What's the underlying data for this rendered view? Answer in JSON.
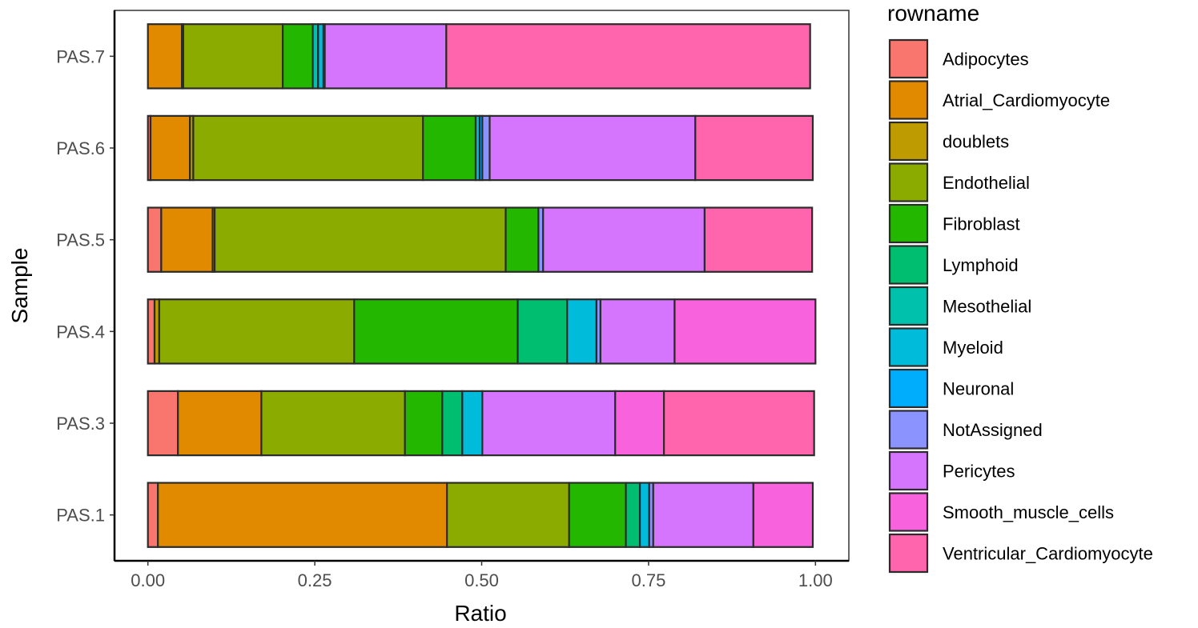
{
  "chart_data": {
    "type": "bar",
    "orientation": "horizontal",
    "stacked": true,
    "xlabel": "Ratio",
    "ylabel": "Sample",
    "xlim": [
      -0.05,
      1.05
    ],
    "xticks": [
      0.0,
      0.25,
      0.5,
      0.75,
      1.0
    ],
    "xtick_labels": [
      "0.00",
      "0.25",
      "0.50",
      "0.75",
      "1.00"
    ],
    "categories": [
      "PAS.1",
      "PAS.3",
      "PAS.4",
      "PAS.5",
      "PAS.6",
      "PAS.7"
    ],
    "legend_title": "rowname",
    "legend_position": "right",
    "series": [
      {
        "name": "Adipocytes",
        "color": "#F8766D",
        "values": [
          0.015,
          0.045,
          0.01,
          0.02,
          0.004,
          0.0
        ]
      },
      {
        "name": "Atrial_Cardiomyocyte",
        "color": "#E18A00",
        "values": [
          0.433,
          0.125,
          0.0,
          0.077,
          0.059,
          0.051
        ]
      },
      {
        "name": "doublets",
        "color": "#BE9C00",
        "values": [
          0.0,
          0.0,
          0.007,
          0.003,
          0.005,
          0.002
        ]
      },
      {
        "name": "Endothelial",
        "color": "#8CAB00",
        "values": [
          0.183,
          0.215,
          0.292,
          0.436,
          0.344,
          0.149
        ]
      },
      {
        "name": "Fibroblast",
        "color": "#24B700",
        "values": [
          0.085,
          0.056,
          0.245,
          0.049,
          0.079,
          0.045
        ]
      },
      {
        "name": "Lymphoid",
        "color": "#00BE70",
        "values": [
          0.021,
          0.03,
          0.074,
          0.0,
          0.0,
          0.0
        ]
      },
      {
        "name": "Mesothelial",
        "color": "#00C1AB",
        "values": [
          0.0,
          0.0,
          0.0,
          0.0,
          0.0,
          0.008
        ]
      },
      {
        "name": "Myeloid",
        "color": "#00BBDA",
        "values": [
          0.014,
          0.03,
          0.044,
          0.0,
          0.006,
          0.008
        ]
      },
      {
        "name": "Neuronal",
        "color": "#00ACFC",
        "values": [
          0.0,
          0.0,
          0.0,
          0.0,
          0.004,
          0.002
        ]
      },
      {
        "name": "NotAssigned",
        "color": "#8B93FF",
        "values": [
          0.006,
          0.0,
          0.006,
          0.007,
          0.011,
          0.0
        ]
      },
      {
        "name": "Pericytes",
        "color": "#D575FE",
        "values": [
          0.15,
          0.199,
          0.111,
          0.242,
          0.308,
          0.182
        ]
      },
      {
        "name": "Smooth_muscle_cells",
        "color": "#F962DD",
        "values": [
          0.089,
          0.073,
          0.211,
          0.0,
          0.0,
          0.0
        ]
      },
      {
        "name": "Ventricular_Cardiomyocyte",
        "color": "#FF65AC",
        "values": [
          0.0,
          0.225,
          0.0,
          0.161,
          0.176,
          0.545
        ]
      }
    ]
  }
}
